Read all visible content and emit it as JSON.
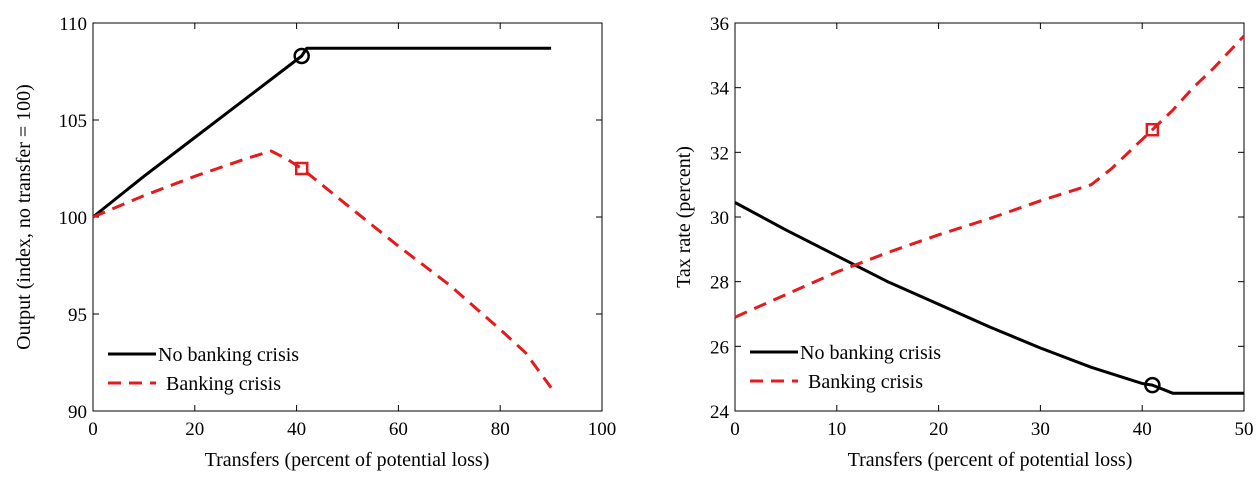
{
  "chart_data": [
    {
      "type": "line",
      "title": "",
      "xlabel": "Transfers (percent of potential loss)",
      "ylabel": "Output (index, no transfer = 100)",
      "xlim": [
        0,
        100
      ],
      "ylim": [
        90,
        110
      ],
      "xticks": [
        "0",
        "20",
        "40",
        "60",
        "80",
        "100"
      ],
      "yticks": [
        "90",
        "95",
        "100",
        "105",
        "110"
      ],
      "grid": false,
      "legend_position": "bottom-left",
      "series": [
        {
          "name": "No banking crisis",
          "color": "#000000",
          "dash": "solid",
          "x": [
            0,
            10,
            20,
            30,
            41,
            42,
            44,
            60,
            80,
            90
          ],
          "y": [
            100,
            102.1,
            104.1,
            106.1,
            108.3,
            108.7,
            108.7,
            108.7,
            108.7,
            108.7
          ],
          "marker": {
            "shape": "circle",
            "x": 41,
            "y": 108.3
          }
        },
        {
          "name": "Banking crisis",
          "color": "#e41a1c",
          "dash": "dashed",
          "x": [
            0,
            10,
            20,
            30,
            35,
            38,
            41,
            50,
            60,
            70,
            80,
            85,
            90
          ],
          "y": [
            100,
            101.1,
            102.1,
            103.0,
            103.4,
            103.0,
            102.5,
            100.6,
            98.5,
            96.5,
            94.2,
            93.0,
            91.2
          ],
          "marker": {
            "shape": "square",
            "x": 41,
            "y": 102.5
          }
        }
      ]
    },
    {
      "type": "line",
      "title": "",
      "xlabel": "Transfers (percent of potential loss)",
      "ylabel": "Tax rate (percent)",
      "xlim": [
        0,
        50
      ],
      "ylim": [
        24,
        36
      ],
      "xticks": [
        "0",
        "10",
        "20",
        "30",
        "40",
        "50"
      ],
      "yticks": [
        "24",
        "26",
        "28",
        "30",
        "32",
        "34",
        "36"
      ],
      "grid": false,
      "legend_position": "bottom-left",
      "series": [
        {
          "name": "No banking crisis",
          "color": "#000000",
          "dash": "solid",
          "x": [
            0,
            5,
            10,
            15,
            20,
            25,
            30,
            35,
            40,
            41,
            43,
            45,
            50
          ],
          "y": [
            30.45,
            29.6,
            28.8,
            28.0,
            27.3,
            26.6,
            25.95,
            25.35,
            24.85,
            24.8,
            24.55,
            24.55,
            24.55
          ],
          "marker": {
            "shape": "circle",
            "x": 41,
            "y": 24.8
          }
        },
        {
          "name": "Banking crisis",
          "color": "#e41a1c",
          "dash": "dashed",
          "x": [
            0,
            5,
            10,
            15,
            20,
            25,
            30,
            35,
            37,
            40,
            41,
            43,
            45,
            47,
            50
          ],
          "y": [
            26.9,
            27.6,
            28.3,
            28.9,
            29.45,
            29.95,
            30.5,
            31.0,
            31.5,
            32.4,
            32.7,
            33.3,
            34.0,
            34.6,
            35.6
          ],
          "marker": {
            "shape": "square",
            "x": 41,
            "y": 32.7
          }
        }
      ]
    }
  ]
}
